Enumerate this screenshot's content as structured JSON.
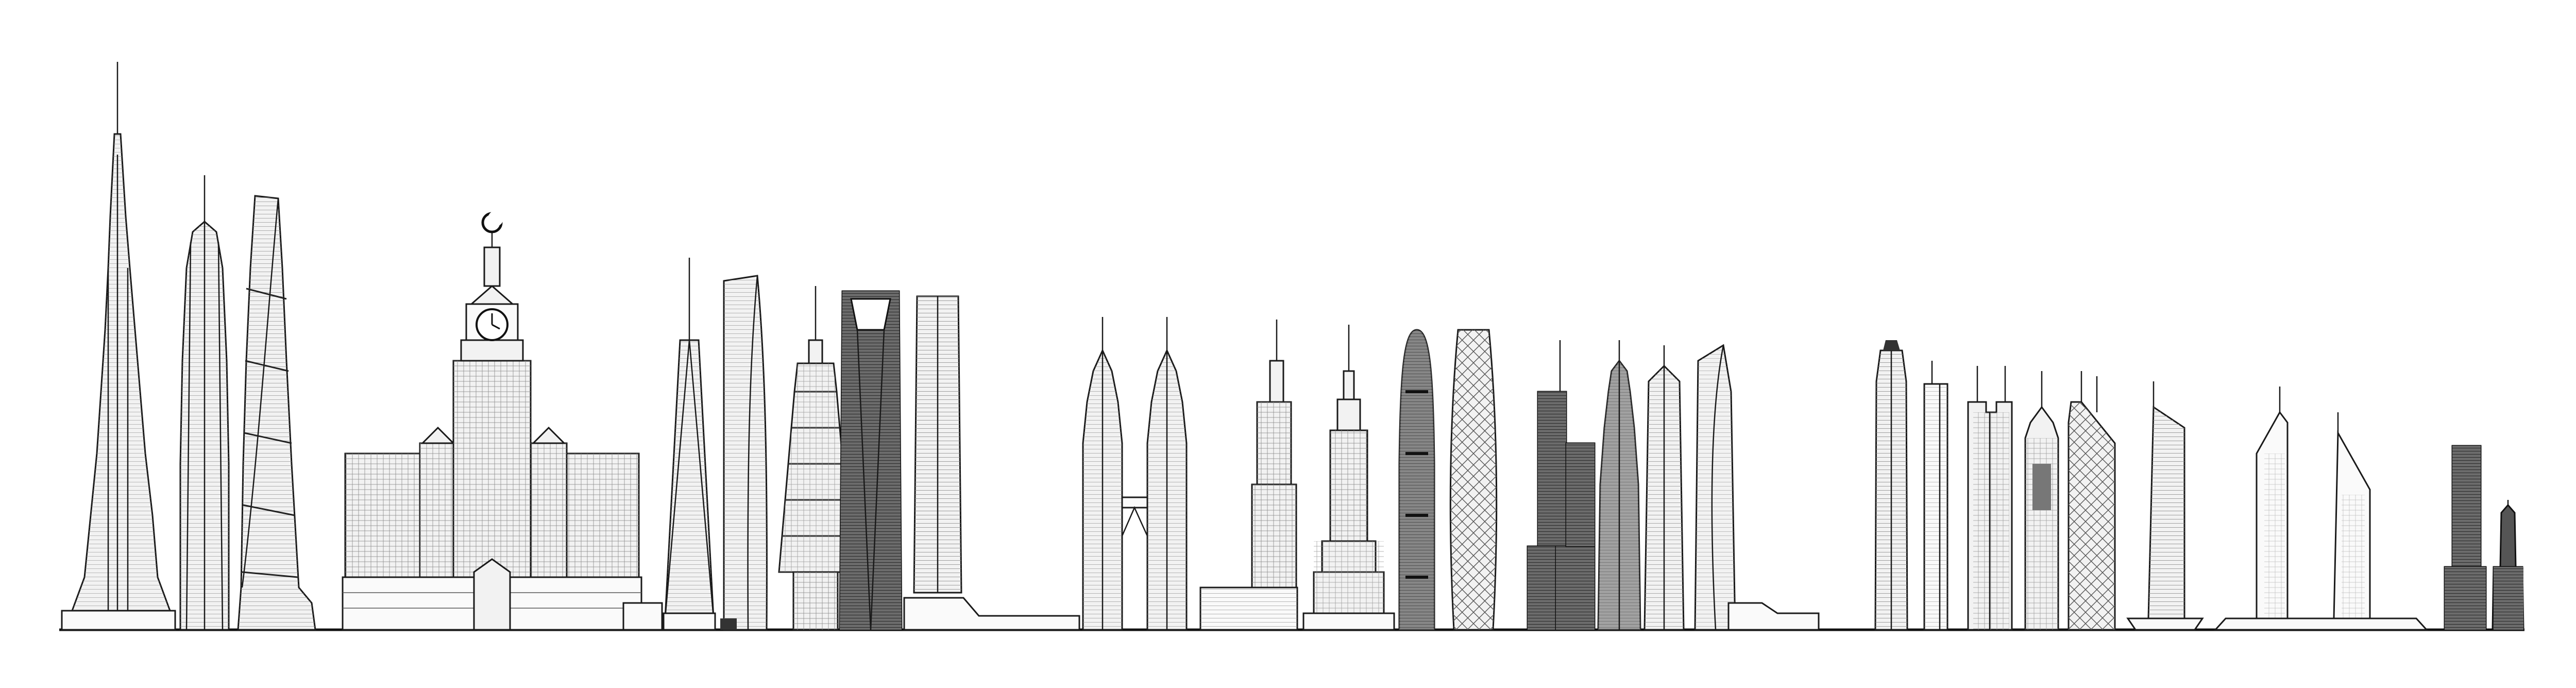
{
  "scene": {
    "background": "#ffffff",
    "line_color": "#1a1a1a",
    "fill_light": "#f2f2f2",
    "fill_dark": "#555555"
  },
  "clock_tower": {
    "crescent_icon": "crescent-moon-icon",
    "clock_icon": "clock-face-icon"
  }
}
